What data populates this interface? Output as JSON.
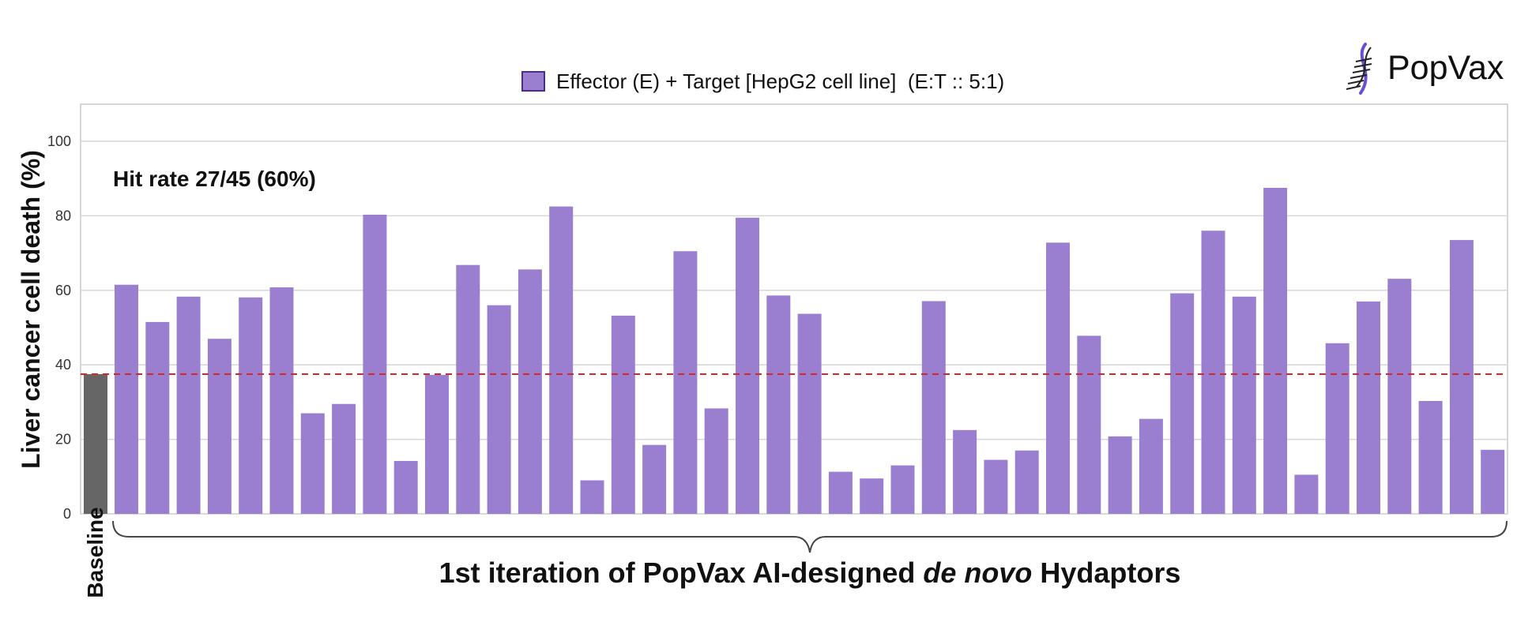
{
  "brand": {
    "name": "PopVax"
  },
  "chart_data": {
    "type": "bar",
    "legend": {
      "label": "Effector (E) + Target [HepG2 cell line]  (E:T :: 5:1)",
      "position": "top-center"
    },
    "ylabel": "Liver cancer cell death (%)",
    "ylim": [
      0,
      110
    ],
    "yticks": [
      0,
      20,
      40,
      60,
      80,
      100
    ],
    "grid": true,
    "annotation": "Hit rate 27/45 (60%)",
    "threshold": 37.5,
    "baseline": {
      "label": "Baseline",
      "value": 37.5,
      "color": "#666666"
    },
    "xlabel": {
      "prefix": "1st iteration of PopVax AI-designed ",
      "italic": "de novo",
      "suffix": " Hydaptors"
    },
    "series": [
      {
        "name": "Effector (E) + Target [HepG2 cell line]  (E:T :: 5:1)",
        "color": "#9a7fd1",
        "values": [
          61.5,
          51.5,
          58.3,
          47,
          58.1,
          60.8,
          27,
          29.5,
          80.3,
          14.2,
          37.3,
          66.8,
          56,
          65.6,
          82.5,
          9,
          53.2,
          18.5,
          70.5,
          28.3,
          79.5,
          58.6,
          53.7,
          11.3,
          9.5,
          13,
          57.1,
          22.5,
          14.5,
          17,
          72.8,
          47.8,
          20.8,
          25.5,
          59.2,
          76,
          58.3,
          87.5,
          10.5,
          45.8,
          57,
          63.1,
          30.3,
          73.5,
          17.2
        ]
      }
    ],
    "colors": {
      "grid": "#d6d6d6",
      "threshold": "#d62728",
      "frame": "#c8c8c8",
      "legend_border": "#4b2d84",
      "text": "#111111"
    }
  }
}
